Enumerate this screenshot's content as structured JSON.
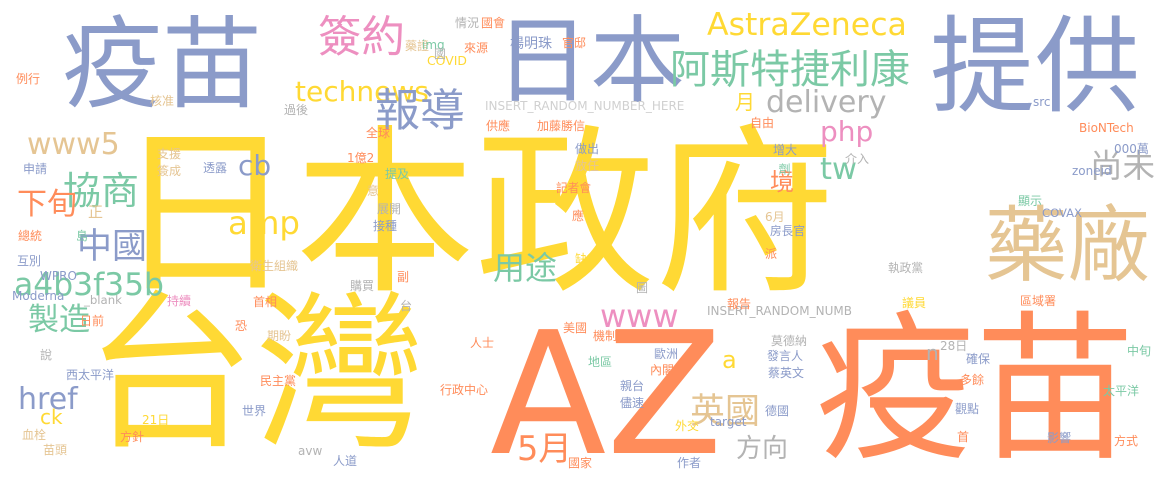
{
  "words": [
    {
      "text": "日本政府",
      "color": "#FFD934",
      "vertical": false
    },
    {
      "text": "台灣",
      "color": "#FFD934",
      "vertical": false
    },
    {
      "text": "AZ",
      "color": "#FF8C5A",
      "vertical": false
    },
    {
      "text": "疫苗",
      "color": "#FF8C5A",
      "vertical": false
    },
    {
      "text": "疫苗",
      "color": "#8B9BC9",
      "vertical": false
    },
    {
      "text": "日本",
      "color": "#8B9BC9",
      "vertical": false
    },
    {
      "text": "提供",
      "color": "#8B9BC9",
      "vertical": false
    },
    {
      "text": "藥廠",
      "color": "#E5C593",
      "vertical": false
    },
    {
      "text": "AstraZeneca",
      "color": "#FFD934",
      "vertical": false
    },
    {
      "text": "阿斯特捷利康",
      "color": "#7BC9A5",
      "vertical": false
    },
    {
      "text": "簽約",
      "color": "#ED8FC0",
      "vertical": false
    },
    {
      "text": "technews",
      "color": "#FFD934",
      "vertical": false
    },
    {
      "text": "delivery",
      "color": "#B3B3B3",
      "vertical": false
    },
    {
      "text": "報導",
      "color": "#8B9BC9",
      "vertical": false
    },
    {
      "text": "www5",
      "color": "#E5C593",
      "vertical": false
    },
    {
      "text": "cb",
      "color": "#8B9BC9",
      "vertical": false
    },
    {
      "text": "協商",
      "color": "#7BC9A5",
      "vertical": false
    },
    {
      "text": "php",
      "color": "#ED8FC0",
      "vertical": false
    },
    {
      "text": "tw",
      "color": "#7BC9A5",
      "vertical": false
    },
    {
      "text": "尚未",
      "color": "#B3B3B3",
      "vertical": false
    },
    {
      "text": "amp",
      "color": "#FFD934",
      "vertical": false
    },
    {
      "text": "中國",
      "color": "#8B9BC9",
      "vertical": false
    },
    {
      "text": "下旬",
      "color": "#FF8C5A",
      "vertical": false
    },
    {
      "text": "a4b3f35b",
      "color": "#7BC9A5",
      "vertical": false
    },
    {
      "text": "用途",
      "color": "#7BC9A5",
      "vertical": false
    },
    {
      "text": "www",
      "color": "#ED8FC0",
      "vertical": false
    },
    {
      "text": "製造",
      "color": "#7BC9A5",
      "vertical": false
    },
    {
      "text": "境",
      "color": "#FF8C5A",
      "vertical": false
    },
    {
      "text": "月",
      "color": "#FFD934",
      "vertical": false
    },
    {
      "text": "英國",
      "color": "#E5C593",
      "vertical": false
    },
    {
      "text": "href",
      "color": "#8B9BC9",
      "vertical": false
    },
    {
      "text": "ck",
      "color": "#FFD934",
      "vertical": false
    },
    {
      "text": "5月",
      "color": "#FF8C5A",
      "vertical": false
    },
    {
      "text": "方向",
      "color": "#B3B3B3",
      "vertical": false
    },
    {
      "text": "a",
      "color": "#FFD934",
      "vertical": false
    },
    {
      "text": "n",
      "color": "#B3B3B3",
      "vertical": false
    },
    {
      "text": "正",
      "color": "#E5C593",
      "vertical": false
    },
    {
      "text": "INSERT_RANDOM_NUMBER_HERE",
      "color": "#D0D0D0",
      "vertical": false
    },
    {
      "text": "INSERT_RANDOM_NUMB",
      "color": "#B3B3B3",
      "vertical": false
    },
    {
      "text": "楊明珠",
      "color": "#8B9BC9",
      "vertical": false
    },
    {
      "text": "情況",
      "color": "#B3B3B3",
      "vertical": false
    },
    {
      "text": "國會",
      "color": "#FF8C5A",
      "vertical": false
    },
    {
      "text": "藥證",
      "color": "#E5C593",
      "vertical": false
    },
    {
      "text": "img",
      "color": "#7BC9A5",
      "vertical": false
    },
    {
      "text": "來源",
      "color": "#FF8C5A",
      "vertical": false
    },
    {
      "text": "官邸",
      "color": "#FF8C5A",
      "vertical": false
    },
    {
      "text": "COVID",
      "color": "#FFD934",
      "vertical": false
    },
    {
      "text": "例行",
      "color": "#FF8C5A",
      "vertical": false
    },
    {
      "text": "核准",
      "color": "#E5C593",
      "vertical": false
    },
    {
      "text": "過後",
      "color": "#B3B3B3",
      "vertical": false
    },
    {
      "text": "供應",
      "color": "#FF8C5A",
      "vertical": false
    },
    {
      "text": "加藤勝信",
      "color": "#FF8C5A",
      "vertical": false
    },
    {
      "text": "全球",
      "color": "#FF8C5A",
      "vertical": false
    },
    {
      "text": "自由",
      "color": "#FF8C5A",
      "vertical": false
    },
    {
      "text": "src",
      "color": "#8B9BC9",
      "vertical": false
    },
    {
      "text": "BioNTech",
      "color": "#FF8C5A",
      "vertical": false
    },
    {
      "text": "zoneid",
      "color": "#8B9BC9",
      "vertical": false
    },
    {
      "text": "000萬",
      "color": "#8B9BC9",
      "vertical": false
    },
    {
      "text": "申請",
      "color": "#8B9BC9",
      "vertical": false
    },
    {
      "text": "支援",
      "color": "#E5C593",
      "vertical": false
    },
    {
      "text": "簽成",
      "color": "#E5C593",
      "vertical": false
    },
    {
      "text": "透露",
      "color": "#8B9BC9",
      "vertical": false
    },
    {
      "text": "1億2",
      "color": "#FF8C5A",
      "vertical": false
    },
    {
      "text": "做出",
      "color": "#8B9BC9",
      "vertical": false
    },
    {
      "text": "放任",
      "color": "#E5C593",
      "vertical": false
    },
    {
      "text": "增大",
      "color": "#8B9BC9",
      "vertical": false
    },
    {
      "text": "介入",
      "color": "#B3B3B3",
      "vertical": false
    },
    {
      "text": "提及",
      "color": "#7BC9A5",
      "vertical": false
    },
    {
      "text": "記者會",
      "color": "#FF8C5A",
      "vertical": false
    },
    {
      "text": "意",
      "color": "#E5C593",
      "vertical": false
    },
    {
      "text": "展開",
      "color": "#B3B3B3",
      "vertical": false
    },
    {
      "text": "應",
      "color": "#FF8C5A",
      "vertical": false
    },
    {
      "text": "接種",
      "color": "#8B9BC9",
      "vertical": false
    },
    {
      "text": "6月",
      "color": "#E5C593",
      "vertical": false
    },
    {
      "text": "房長官",
      "color": "#8B9BC9",
      "vertical": false
    },
    {
      "text": "COVAX",
      "color": "#8B9BC9",
      "vertical": false
    },
    {
      "text": "顯示",
      "color": "#7BC9A5",
      "vertical": false
    },
    {
      "text": "總統",
      "color": "#FF8C5A",
      "vertical": false
    },
    {
      "text": "島",
      "color": "#7BC9A5",
      "vertical": false
    },
    {
      "text": "互別",
      "color": "#8B9BC9",
      "vertical": false
    },
    {
      "text": "WPRO",
      "color": "#8B9BC9",
      "vertical": false
    },
    {
      "text": "衛生組織",
      "color": "#E5C593",
      "vertical": false
    },
    {
      "text": "缺貨",
      "color": "#FFD934",
      "vertical": false
    },
    {
      "text": "派",
      "color": "#FF8C5A",
      "vertical": false
    },
    {
      "text": "執政黨",
      "color": "#B3B3B3",
      "vertical": false
    },
    {
      "text": "Moderna",
      "color": "#8B9BC9",
      "vertical": false
    },
    {
      "text": "_blank",
      "color": "#B3B3B3",
      "vertical": false
    },
    {
      "text": "購買",
      "color": "#B3B3B3",
      "vertical": false
    },
    {
      "text": "副",
      "color": "#FF8C5A",
      "vertical": false
    },
    {
      "text": "報告",
      "color": "#FF8C5A",
      "vertical": false
    },
    {
      "text": "議員",
      "color": "#FFD934",
      "vertical": false
    },
    {
      "text": "區域署",
      "color": "#FF8C5A",
      "vertical": false
    },
    {
      "text": "持續",
      "color": "#ED8FC0",
      "vertical": false
    },
    {
      "text": "首相",
      "color": "#FF8C5A",
      "vertical": false
    },
    {
      "text": "日前",
      "color": "#FF8C5A",
      "vertical": false
    },
    {
      "text": "恐",
      "color": "#FF8C5A",
      "vertical": false
    },
    {
      "text": "美國",
      "color": "#FF8C5A",
      "vertical": false
    },
    {
      "text": "機制",
      "color": "#FF8C5A",
      "vertical": false
    },
    {
      "text": "莫德納",
      "color": "#B3B3B3",
      "vertical": false
    },
    {
      "text": "發言人",
      "color": "#8B9BC9",
      "vertical": false
    },
    {
      "text": "28日",
      "color": "#B3B3B3",
      "vertical": false
    },
    {
      "text": "期盼",
      "color": "#E5C593",
      "vertical": false
    },
    {
      "text": "人士",
      "color": "#FF8C5A",
      "vertical": false
    },
    {
      "text": "說",
      "color": "#B3B3B3",
      "vertical": false
    },
    {
      "text": "地區",
      "color": "#7BC9A5",
      "vertical": false
    },
    {
      "text": "歐洲",
      "color": "#8B9BC9",
      "vertical": false
    },
    {
      "text": "蔡英文",
      "color": "#8B9BC9",
      "vertical": false
    },
    {
      "text": "確保",
      "color": "#8B9BC9",
      "vertical": false
    },
    {
      "text": "中旬",
      "color": "#7BC9A5",
      "vertical": false
    },
    {
      "text": "西太平洋",
      "color": "#8B9BC9",
      "vertical": false
    },
    {
      "text": "民主黨",
      "color": "#FF8C5A",
      "vertical": false
    },
    {
      "text": "內閣官",
      "color": "#FF8C5A",
      "vertical": false
    },
    {
      "text": "多餘",
      "color": "#FF8C5A",
      "vertical": false
    },
    {
      "text": "行政中心",
      "color": "#FF8C5A",
      "vertical": false
    },
    {
      "text": "親台",
      "color": "#8B9BC9",
      "vertical": false
    },
    {
      "text": "太平洋",
      "color": "#7BC9A5",
      "vertical": false
    },
    {
      "text": "世界",
      "color": "#8B9BC9",
      "vertical": false
    },
    {
      "text": "儘速",
      "color": "#8B9BC9",
      "vertical": false
    },
    {
      "text": "德國",
      "color": "#8B9BC9",
      "vertical": false
    },
    {
      "text": "觀點",
      "color": "#8B9BC9",
      "vertical": false
    },
    {
      "text": "21日",
      "color": "#FFD934",
      "vertical": false
    },
    {
      "text": "血栓",
      "color": "#E5C593",
      "vertical": false
    },
    {
      "text": "方針",
      "color": "#FF8C5A",
      "vertical": false
    },
    {
      "text": "外交",
      "color": "#FFD934",
      "vertical": false
    },
    {
      "text": "target",
      "color": "#8B9BC9",
      "vertical": false
    },
    {
      "text": "首",
      "color": "#FF8C5A",
      "vertical": false
    },
    {
      "text": "影響",
      "color": "#8B9BC9",
      "vertical": false
    },
    {
      "text": "方式",
      "color": "#FF8C5A",
      "vertical": false
    },
    {
      "text": "苗頭",
      "color": "#E5C593",
      "vertical": false
    },
    {
      "text": "avw",
      "color": "#B3B3B3",
      "vertical": false
    },
    {
      "text": "人道",
      "color": "#8B9BC9",
      "vertical": false
    },
    {
      "text": "國家",
      "color": "#FF8C5A",
      "vertical": false
    },
    {
      "text": "作者",
      "color": "#8B9BC9",
      "vertical": false
    },
    {
      "text": "劑",
      "color": "#7BC9A5",
      "vertical": true
    },
    {
      "text": "國",
      "color": "#B3B3B3",
      "vertical": false
    },
    {
      "text": "圖",
      "color": "#B3B3B3",
      "vertical": false
    },
    {
      "text": "台",
      "color": "#B3B3B3",
      "vertical": false
    }
  ]
}
